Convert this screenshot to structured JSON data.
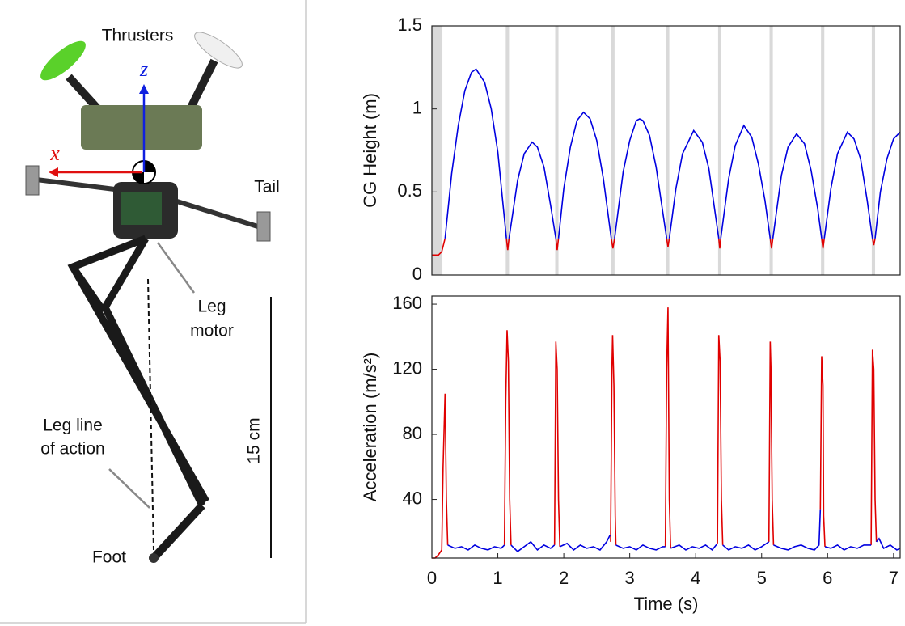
{
  "photo": {
    "labels": {
      "thrusters": "Thrusters",
      "z_axis": "z",
      "x_axis": "x",
      "tail": "Tail",
      "leg_motor": [
        "Leg",
        "motor"
      ],
      "scale": "15 cm",
      "leg_line": [
        "Leg line",
        "of action"
      ],
      "foot": "Foot"
    }
  },
  "chart_data": [
    {
      "type": "line",
      "ylabel": "CG Height (m)",
      "xlim": [
        0,
        7.1
      ],
      "ylim": [
        0,
        1.5
      ],
      "yticks": [
        0,
        0.5,
        1,
        1.5
      ],
      "shade_color": "#d9d9d9",
      "shaded_regions": [
        [
          0,
          0.16
        ],
        [
          1.12,
          1.17
        ],
        [
          1.87,
          1.92
        ],
        [
          2.71,
          2.77
        ],
        [
          3.55,
          3.6
        ],
        [
          4.34,
          4.38
        ],
        [
          5.12,
          5.17
        ],
        [
          5.9,
          5.95
        ],
        [
          6.67,
          6.72
        ]
      ],
      "series": [
        {
          "color": "#e00000",
          "x": [
            0,
            0.1,
            0.15,
            0.2,
            null,
            1.13,
            1.15,
            1.17,
            null,
            1.88,
            1.9,
            1.92,
            null,
            2.72,
            2.745,
            2.77,
            null,
            3.56,
            3.58,
            3.6,
            null,
            4.35,
            4.365,
            4.38,
            null,
            5.13,
            5.15,
            5.17,
            null,
            5.91,
            5.93,
            5.95,
            null,
            6.68,
            6.7,
            6.72
          ],
          "values": [
            0.12,
            0.12,
            0.14,
            0.22,
            null,
            0.22,
            0.15,
            0.22,
            null,
            0.22,
            0.15,
            0.22,
            null,
            0.22,
            0.16,
            0.22,
            null,
            0.22,
            0.17,
            0.22,
            null,
            0.22,
            0.16,
            0.22,
            null,
            0.22,
            0.16,
            0.22,
            null,
            0.22,
            0.16,
            0.22,
            null,
            0.22,
            0.18,
            0.22
          ]
        },
        {
          "color": "#0000e0",
          "x": [
            0.2,
            0.3,
            0.4,
            0.5,
            0.6,
            0.67,
            0.8,
            0.9,
            1.0,
            1.13,
            null,
            1.17,
            1.3,
            1.4,
            1.52,
            1.6,
            1.7,
            1.8,
            1.88,
            null,
            1.92,
            2.0,
            2.1,
            2.2,
            2.3,
            2.4,
            2.5,
            2.6,
            2.72,
            null,
            2.77,
            2.9,
            3.0,
            3.1,
            3.15,
            3.2,
            3.3,
            3.4,
            3.56,
            null,
            3.6,
            3.7,
            3.8,
            3.97,
            4.1,
            4.2,
            4.35,
            null,
            4.38,
            4.5,
            4.6,
            4.73,
            4.85,
            4.95,
            5.05,
            5.13,
            null,
            5.17,
            5.3,
            5.4,
            5.53,
            5.65,
            5.75,
            5.85,
            5.91,
            null,
            5.95,
            6.05,
            6.15,
            6.3,
            6.4,
            6.5,
            6.6,
            6.68,
            null,
            6.72,
            6.8,
            6.9,
            7.0,
            7.1
          ],
          "values": [
            0.22,
            0.61,
            0.9,
            1.11,
            1.22,
            1.24,
            1.16,
            1.0,
            0.74,
            0.22,
            null,
            0.22,
            0.57,
            0.73,
            0.8,
            0.77,
            0.65,
            0.42,
            0.22,
            null,
            0.22,
            0.52,
            0.77,
            0.93,
            0.98,
            0.94,
            0.81,
            0.58,
            0.22,
            null,
            0.22,
            0.62,
            0.81,
            0.93,
            0.94,
            0.93,
            0.84,
            0.65,
            0.22,
            null,
            0.22,
            0.52,
            0.73,
            0.87,
            0.8,
            0.64,
            0.22,
            null,
            0.22,
            0.58,
            0.78,
            0.9,
            0.83,
            0.67,
            0.45,
            0.22,
            null,
            0.22,
            0.6,
            0.77,
            0.85,
            0.79,
            0.63,
            0.4,
            0.22,
            null,
            0.22,
            0.52,
            0.73,
            0.86,
            0.82,
            0.7,
            0.45,
            0.22,
            null,
            0.22,
            0.5,
            0.7,
            0.82,
            0.86
          ]
        }
      ]
    },
    {
      "type": "line",
      "ylabel": "Acceleration (m/s²)",
      "xlabel": "Time (s)",
      "xlim": [
        0,
        7.1
      ],
      "ylim": [
        4,
        165
      ],
      "yticks": [
        40,
        80,
        120,
        160
      ],
      "xticks": [
        0,
        1,
        2,
        3,
        4,
        5,
        6,
        7
      ],
      "series": [
        {
          "color": "#e00000",
          "x": [
            0,
            0.05,
            0.1,
            0.15,
            0.17,
            0.2,
            0.22,
            0.24,
            null,
            1.1,
            1.12,
            1.14,
            1.16,
            1.18,
            1.2,
            null,
            1.86,
            1.88,
            1.9,
            1.92,
            1.94,
            null,
            2.71,
            2.73,
            2.74,
            2.76,
            2.78,
            2.79,
            null,
            3.54,
            3.56,
            3.58,
            3.6,
            3.62,
            null,
            4.33,
            4.35,
            4.37,
            4.39,
            4.41,
            null,
            5.11,
            5.13,
            5.14,
            5.16,
            5.18,
            null,
            5.89,
            5.91,
            5.93,
            5.94,
            5.96,
            null,
            6.66,
            6.68,
            6.7,
            6.72,
            6.74
          ],
          "values": [
            4,
            4,
            6,
            9,
            60,
            105,
            40,
            12,
            null,
            12,
            100,
            144,
            125,
            40,
            12,
            null,
            12,
            137,
            120,
            40,
            11,
            null,
            14,
            120,
            141,
            110,
            30,
            12,
            null,
            11,
            120,
            158,
            40,
            10,
            null,
            13,
            141,
            125,
            40,
            12,
            null,
            14,
            137,
            122,
            40,
            12,
            null,
            34,
            128,
            110,
            30,
            11,
            null,
            12,
            132,
            120,
            40,
            14
          ]
        },
        {
          "color": "#0000e0",
          "x": [
            0.24,
            0.35,
            0.45,
            0.55,
            0.65,
            0.75,
            0.85,
            0.95,
            1.05,
            1.1,
            null,
            1.2,
            1.3,
            1.4,
            1.5,
            1.6,
            1.7,
            1.8,
            1.86,
            null,
            1.94,
            2.05,
            2.15,
            2.25,
            2.35,
            2.45,
            2.55,
            2.65,
            2.7,
            null,
            2.79,
            2.9,
            3.0,
            3.1,
            3.2,
            3.3,
            3.4,
            3.5,
            3.54,
            null,
            3.62,
            3.75,
            3.85,
            3.95,
            4.05,
            4.15,
            4.25,
            4.33,
            null,
            4.41,
            4.5,
            4.6,
            4.7,
            4.8,
            4.9,
            5.0,
            5.11,
            null,
            5.18,
            5.3,
            5.4,
            5.5,
            5.6,
            5.7,
            5.8,
            5.87,
            5.89,
            null,
            5.96,
            6.05,
            6.15,
            6.25,
            6.35,
            6.45,
            6.55,
            6.66,
            null,
            6.74,
            6.78,
            6.85,
            6.95,
            7.05,
            7.1
          ],
          "values": [
            12,
            10,
            11,
            9,
            12,
            10,
            9,
            11,
            10,
            12,
            null,
            12,
            8,
            11,
            14,
            9,
            12,
            10,
            12,
            null,
            11,
            13,
            9,
            12,
            10,
            11,
            9,
            14,
            18,
            null,
            12,
            10,
            11,
            9,
            12,
            10,
            9,
            11,
            11,
            null,
            10,
            12,
            9,
            11,
            10,
            12,
            9,
            13,
            null,
            12,
            9,
            11,
            10,
            12,
            9,
            11,
            14,
            null,
            12,
            10,
            9,
            11,
            12,
            10,
            9,
            12,
            34,
            null,
            11,
            10,
            12,
            9,
            11,
            10,
            12,
            12,
            null,
            14,
            16,
            10,
            12,
            9,
            10
          ]
        }
      ]
    }
  ]
}
